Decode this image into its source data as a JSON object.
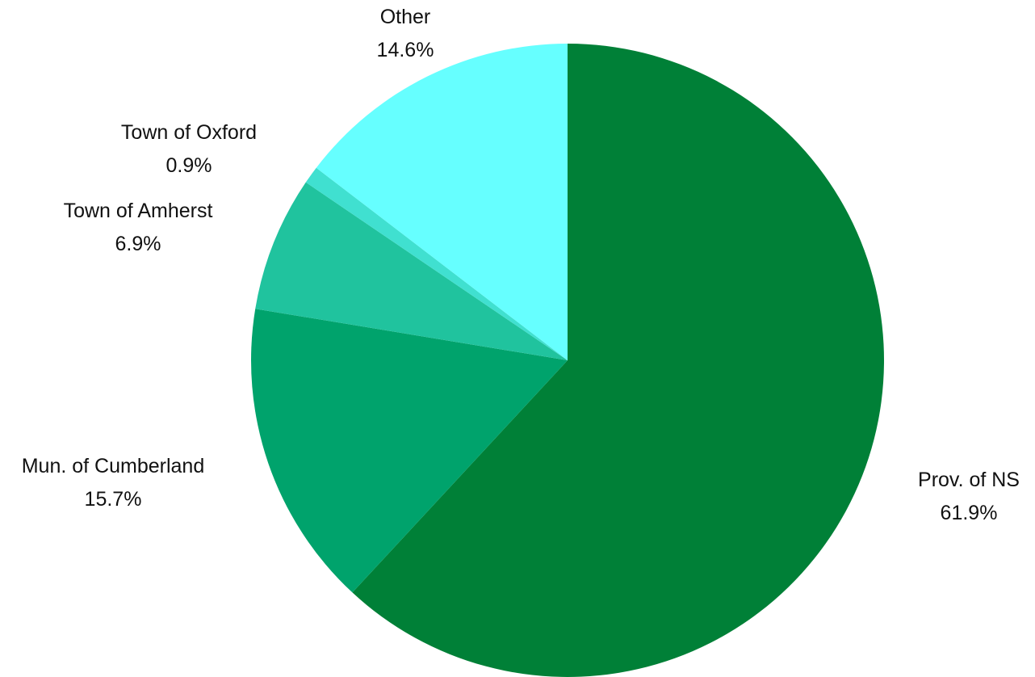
{
  "chart_data": {
    "type": "pie",
    "start_angle_deg": 0,
    "direction": "clockwise",
    "slices": [
      {
        "label": "Prov. of NS",
        "value": 61.9,
        "value_label": "61.9%",
        "color": "#008037"
      },
      {
        "label": "Mun. of Cumberland",
        "value": 15.7,
        "value_label": "15.7%",
        "color": "#00A36C"
      },
      {
        "label": "Town of Amherst",
        "value": 6.9,
        "value_label": "6.9%",
        "color": "#20C39E"
      },
      {
        "label": "Town of Oxford",
        "value": 0.9,
        "value_label": "0.9%",
        "color": "#40E0D0"
      },
      {
        "label": "Other",
        "value": 14.6,
        "value_label": "14.6%",
        "color": "#66FFFF"
      }
    ],
    "title": "",
    "legend": "none"
  }
}
